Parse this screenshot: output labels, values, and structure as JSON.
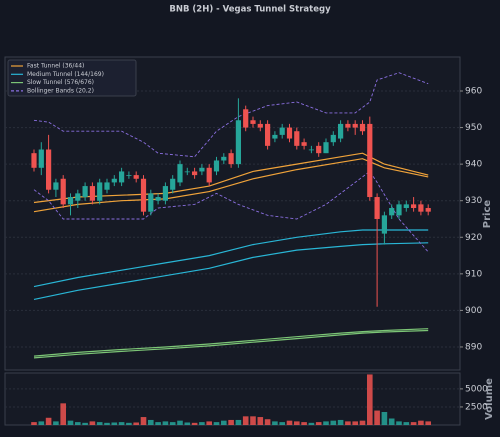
{
  "chart_data": {
    "type": "candlestick",
    "title": "BNB (2H) - Vegas Tunnel Strategy",
    "ylabel": "Price",
    "ylim": [
      883.7,
      969.3
    ],
    "yticks": [
      890,
      900,
      910,
      920,
      930,
      940,
      950,
      960
    ],
    "grid": true,
    "up_color": "#26a69a",
    "down_color": "#ef5350",
    "legend": "upper left",
    "open": [
      943,
      939,
      944,
      933,
      936,
      929,
      930,
      931,
      934,
      930,
      933,
      935,
      935,
      937,
      937,
      936,
      927,
      930,
      930,
      933,
      935,
      938,
      938,
      938,
      939,
      938,
      941,
      943,
      940,
      955,
      952,
      951,
      951,
      947,
      948,
      950,
      949,
      946,
      944,
      945,
      943,
      946,
      947,
      951,
      951,
      951,
      951,
      931,
      921,
      926,
      926,
      928,
      929,
      929,
      928
    ],
    "high": [
      944,
      946,
      948,
      936,
      937,
      932,
      933,
      935,
      935,
      936,
      936,
      937,
      939,
      938,
      938,
      937,
      933,
      932,
      935,
      937,
      941,
      939,
      939,
      940,
      940,
      942,
      943,
      944,
      958,
      956,
      953,
      952,
      952,
      949,
      951,
      951,
      950,
      947,
      945,
      946,
      947,
      949,
      952,
      952,
      952,
      952,
      953,
      932,
      927,
      929,
      930,
      930,
      931,
      930,
      929
    ],
    "low": [
      938,
      937,
      932,
      931,
      928,
      926,
      928,
      930,
      929,
      929,
      932,
      934,
      934,
      936,
      935,
      926,
      926,
      929,
      929,
      932,
      934,
      937,
      936,
      937,
      934,
      937,
      940,
      939,
      939,
      949,
      950,
      949,
      944,
      946,
      947,
      946,
      944,
      944,
      943,
      942,
      943,
      945,
      946,
      949,
      948,
      948,
      930,
      901,
      918,
      925,
      925,
      927,
      927,
      926,
      926
    ],
    "close": [
      939,
      944,
      933,
      935,
      929,
      931,
      932,
      934,
      930,
      935,
      935,
      936,
      938,
      937,
      936,
      927,
      932,
      931,
      934,
      936,
      940,
      938,
      937,
      939,
      935,
      941,
      942,
      940,
      952,
      950,
      951,
      950,
      945,
      948,
      950,
      947,
      945,
      945,
      944,
      943,
      946,
      948,
      951,
      950,
      950,
      949,
      931,
      925,
      926,
      928,
      929,
      929,
      928,
      927,
      927
    ],
    "lines": [
      {
        "name": "Fast Tunnel (36/44)",
        "color": "#f0a33a",
        "x": [
          0,
          6,
          12,
          18,
          24,
          30,
          36,
          42,
          45,
          48,
          54
        ],
        "upper": [
          929.5,
          931,
          931.5,
          932,
          934,
          938,
          940,
          942,
          943,
          940,
          937
        ],
        "lower": [
          927,
          929,
          930,
          930.5,
          932.5,
          936,
          938.5,
          940.5,
          941.5,
          939,
          936.5
        ]
      },
      {
        "name": "Medium Tunnel (144/169)",
        "color": "#29b6d6",
        "x": [
          0,
          6,
          12,
          18,
          24,
          30,
          36,
          42,
          45,
          48,
          54
        ],
        "upper": [
          906.5,
          909,
          911,
          913,
          915,
          918,
          920,
          921.5,
          922,
          922,
          922
        ],
        "lower": [
          903,
          905.5,
          907.5,
          909.5,
          911.5,
          914.5,
          916.5,
          917.5,
          918,
          918.2,
          918.5
        ]
      },
      {
        "name": "Slow Tunnel (576/676)",
        "color": "#7cc576",
        "x": [
          0,
          6,
          12,
          18,
          24,
          30,
          36,
          42,
          45,
          48,
          54
        ],
        "upper": [
          887.5,
          888.5,
          889.3,
          890,
          890.8,
          891.8,
          892.8,
          893.8,
          894.2,
          894.5,
          895
        ],
        "lower": [
          887,
          888,
          888.8,
          889.5,
          890.3,
          891.3,
          892.3,
          893.3,
          893.8,
          894.1,
          894.5
        ]
      },
      {
        "name": "Bollinger Bands (20,2)",
        "color": "#8a6fe0",
        "dashed": true,
        "x": [
          0,
          2,
          4,
          8,
          12,
          15,
          17,
          22,
          25,
          28,
          32,
          36,
          40,
          44,
          46,
          47,
          50,
          54
        ],
        "upper": [
          952,
          951.5,
          949,
          949,
          949,
          946,
          943,
          942,
          949,
          953,
          956,
          957,
          954,
          954,
          957,
          963,
          965,
          962
        ],
        "lower": [
          933,
          930,
          925,
          925,
          925,
          925,
          928,
          929,
          932,
          929,
          926,
          925,
          929,
          935,
          938,
          935,
          925,
          916
        ]
      }
    ],
    "volume": {
      "ylabel": "Volume",
      "ylim": [
        0,
        7200
      ],
      "yticks": [
        2500,
        5000
      ],
      "values": [
        400,
        500,
        1000,
        500,
        3000,
        600,
        400,
        300,
        500,
        400,
        300,
        350,
        400,
        300,
        350,
        1100,
        700,
        400,
        500,
        400,
        600,
        350,
        300,
        400,
        500,
        400,
        600,
        700,
        700,
        1200,
        1200,
        1100,
        800,
        500,
        400,
        600,
        500,
        400,
        300,
        400,
        500,
        600,
        700,
        500,
        500,
        600,
        7000,
        2000,
        1800,
        900,
        500,
        400,
        400,
        600,
        500
      ]
    }
  }
}
